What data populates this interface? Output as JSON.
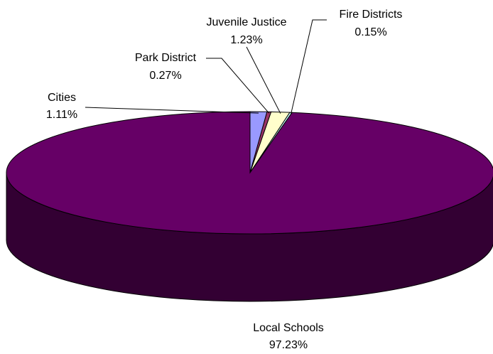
{
  "chart_data": {
    "type": "pie",
    "three_d": true,
    "slices": [
      {
        "name": "Local Schools",
        "value": 97.23,
        "label": "97.23%",
        "color": "#660066"
      },
      {
        "name": "Cities",
        "value": 1.11,
        "label": "1.11%",
        "color": "#9999ff"
      },
      {
        "name": "Park District",
        "value": 0.27,
        "label": "0.27%",
        "color": "#993366"
      },
      {
        "name": "Juvenile Justice",
        "value": 1.23,
        "label": "1.23%",
        "color": "#ffffcc"
      },
      {
        "name": "Fire Districts",
        "value": 0.15,
        "label": "0.15%",
        "color": "#ccffff"
      }
    ]
  }
}
